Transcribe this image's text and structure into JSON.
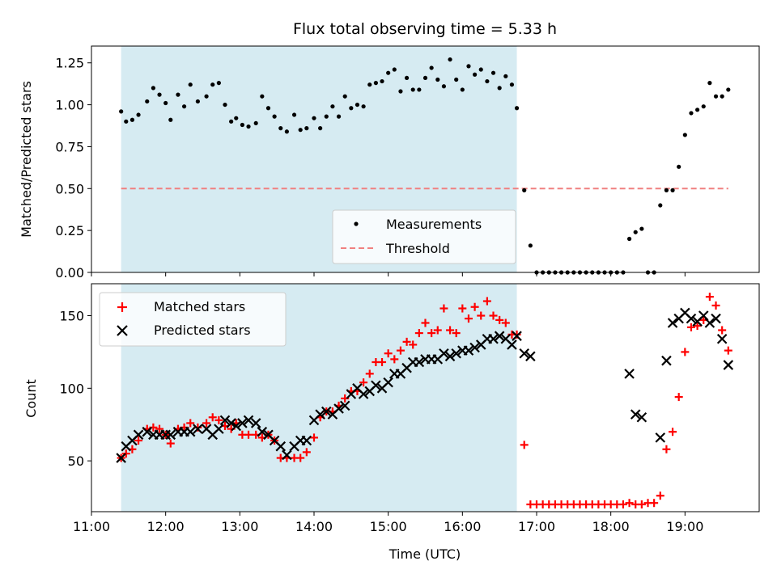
{
  "chart_data": [
    {
      "type": "scatter",
      "title": "Flux total observing time = 5.33 h",
      "xlabel": "",
      "ylabel": "Matched/Predicted stars",
      "xlim": [
        "11:00",
        "20:00"
      ],
      "ylim": [
        0,
        1.35
      ],
      "yticks": [
        0.0,
        0.25,
        0.5,
        0.75,
        1.0,
        1.25
      ],
      "ytick_labels": [
        "0.00",
        "0.25",
        "0.50",
        "0.75",
        "1.00",
        "1.25"
      ],
      "shaded_interval": [
        "11:24",
        "16:44"
      ],
      "shade_color": "#add8e6",
      "legend_position": "lower-right",
      "series": [
        {
          "name": "Measurements",
          "marker": "dot",
          "color": "#000000",
          "x": [
            "11:24",
            "11:28",
            "11:33",
            "11:38",
            "11:45",
            "11:50",
            "11:55",
            "12:00",
            "12:04",
            "12:10",
            "12:15",
            "12:20",
            "12:26",
            "12:33",
            "12:38",
            "12:43",
            "12:48",
            "12:53",
            "12:57",
            "13:02",
            "13:07",
            "13:13",
            "13:18",
            "13:23",
            "13:28",
            "13:33",
            "13:38",
            "13:44",
            "13:49",
            "13:54",
            "14:00",
            "14:05",
            "14:10",
            "14:15",
            "14:20",
            "14:25",
            "14:30",
            "14:35",
            "14:40",
            "14:45",
            "14:50",
            "14:55",
            "15:00",
            "15:05",
            "15:10",
            "15:15",
            "15:20",
            "15:25",
            "15:30",
            "15:35",
            "15:40",
            "15:45",
            "15:50",
            "15:55",
            "16:00",
            "16:05",
            "16:10",
            "16:15",
            "16:20",
            "16:25",
            "16:30",
            "16:35",
            "16:40",
            "16:44",
            "16:50",
            "16:55",
            "17:00",
            "17:05",
            "17:10",
            "17:15",
            "17:20",
            "17:25",
            "17:30",
            "17:35",
            "17:40",
            "17:45",
            "17:50",
            "17:55",
            "18:00",
            "18:05",
            "18:10",
            "18:15",
            "18:20",
            "18:25",
            "18:30",
            "18:35",
            "18:40",
            "18:45",
            "18:50",
            "18:55",
            "19:00",
            "19:05",
            "19:10",
            "19:15",
            "19:20",
            "19:25",
            "19:30",
            "19:35"
          ],
          "y": [
            0.96,
            0.9,
            0.91,
            0.94,
            1.02,
            1.1,
            1.06,
            1.01,
            0.91,
            1.06,
            0.99,
            1.12,
            1.02,
            1.05,
            1.12,
            1.13,
            1.0,
            0.9,
            0.92,
            0.88,
            0.87,
            0.89,
            1.05,
            0.98,
            0.93,
            0.86,
            0.84,
            0.94,
            0.85,
            0.86,
            0.92,
            0.86,
            0.93,
            0.99,
            0.93,
            1.05,
            0.98,
            1.0,
            0.99,
            1.12,
            1.13,
            1.14,
            1.19,
            1.21,
            1.08,
            1.16,
            1.09,
            1.09,
            1.16,
            1.22,
            1.15,
            1.11,
            1.27,
            1.15,
            1.09,
            1.23,
            1.18,
            1.21,
            1.14,
            1.19,
            1.1,
            1.17,
            1.12,
            0.98,
            0.49,
            0.16,
            0.0,
            0.0,
            0.0,
            0.0,
            0.0,
            0.0,
            0.0,
            0.0,
            0.0,
            0.0,
            0.0,
            0.0,
            0.0,
            0.0,
            0.0,
            0.2,
            0.24,
            0.26,
            0.0,
            0.0,
            0.4,
            0.49,
            0.49,
            0.63,
            0.82,
            0.95,
            0.97,
            0.99,
            1.13,
            1.05,
            1.05,
            1.09
          ]
        },
        {
          "name": "Threshold",
          "marker": "dashed-line",
          "color": "#f08080",
          "x": [
            "11:24",
            "19:35"
          ],
          "y": [
            0.5,
            0.5
          ]
        }
      ]
    },
    {
      "type": "scatter",
      "title": "",
      "xlabel": "Time (UTC)",
      "ylabel": "Count",
      "xlim": [
        "11:00",
        "20:00"
      ],
      "ylim": [
        15,
        172
      ],
      "yticks": [
        50,
        100,
        150
      ],
      "xticks": [
        "11:00",
        "12:00",
        "13:00",
        "14:00",
        "15:00",
        "16:00",
        "17:00",
        "18:00",
        "19:00"
      ],
      "shaded_interval": [
        "11:24",
        "16:44"
      ],
      "shade_color": "#add8e6",
      "legend_position": "upper-left",
      "series": [
        {
          "name": "Matched stars",
          "marker": "plus",
          "color": "#ff0000",
          "x": [
            "11:24",
            "11:28",
            "11:33",
            "11:38",
            "11:45",
            "11:50",
            "11:55",
            "12:00",
            "12:04",
            "12:10",
            "12:15",
            "12:20",
            "12:26",
            "12:33",
            "12:38",
            "12:43",
            "12:48",
            "12:53",
            "12:57",
            "13:02",
            "13:07",
            "13:13",
            "13:18",
            "13:23",
            "13:28",
            "13:33",
            "13:38",
            "13:44",
            "13:49",
            "13:54",
            "14:00",
            "14:05",
            "14:10",
            "14:15",
            "14:20",
            "14:25",
            "14:30",
            "14:35",
            "14:40",
            "14:45",
            "14:50",
            "14:55",
            "15:00",
            "15:05",
            "15:10",
            "15:15",
            "15:20",
            "15:25",
            "15:30",
            "15:35",
            "15:40",
            "15:45",
            "15:50",
            "15:55",
            "16:00",
            "16:05",
            "16:10",
            "16:15",
            "16:20",
            "16:25",
            "16:30",
            "16:35",
            "16:40",
            "16:44",
            "16:50",
            "16:55",
            "17:00",
            "17:05",
            "17:10",
            "17:15",
            "17:20",
            "17:25",
            "17:30",
            "17:35",
            "17:40",
            "17:45",
            "17:50",
            "17:55",
            "18:00",
            "18:05",
            "18:10",
            "18:15",
            "18:20",
            "18:25",
            "18:30",
            "18:35",
            "18:40",
            "18:45",
            "18:50",
            "18:55",
            "19:00",
            "19:05",
            "19:10",
            "19:15",
            "19:20",
            "19:25",
            "19:30",
            "19:35"
          ],
          "y": [
            52,
            55,
            58,
            64,
            72,
            73,
            72,
            68,
            62,
            72,
            73,
            76,
            73,
            76,
            80,
            78,
            74,
            72,
            76,
            68,
            68,
            68,
            66,
            68,
            64,
            52,
            52,
            52,
            52,
            56,
            66,
            80,
            84,
            84,
            88,
            93,
            98,
            98,
            104,
            110,
            118,
            118,
            124,
            120,
            126,
            132,
            130,
            138,
            145,
            138,
            140,
            155,
            140,
            138,
            155,
            148,
            156,
            150,
            160,
            150,
            147,
            145,
            137,
            137,
            61,
            20,
            20,
            20,
            20,
            20,
            20,
            20,
            20,
            20,
            20,
            20,
            20,
            20,
            20,
            20,
            20,
            21,
            20,
            20,
            21,
            21,
            26,
            58,
            70,
            94,
            125,
            142,
            143,
            147,
            163,
            157,
            140,
            126
          ]
        },
        {
          "name": "Predicted stars",
          "marker": "x",
          "color": "#000000",
          "x": [
            "11:24",
            "11:28",
            "11:33",
            "11:38",
            "11:45",
            "11:50",
            "11:55",
            "12:00",
            "12:04",
            "12:10",
            "12:15",
            "12:20",
            "12:26",
            "12:33",
            "12:38",
            "12:43",
            "12:48",
            "12:53",
            "12:57",
            "13:02",
            "13:07",
            "13:13",
            "13:18",
            "13:23",
            "13:28",
            "13:33",
            "13:38",
            "13:44",
            "13:49",
            "13:54",
            "14:00",
            "14:05",
            "14:10",
            "14:15",
            "14:20",
            "14:25",
            "14:30",
            "14:35",
            "14:40",
            "14:45",
            "14:50",
            "14:55",
            "15:00",
            "15:05",
            "15:10",
            "15:15",
            "15:20",
            "15:25",
            "15:30",
            "15:35",
            "15:40",
            "15:45",
            "15:50",
            "15:55",
            "16:00",
            "16:05",
            "16:10",
            "16:15",
            "16:20",
            "16:25",
            "16:30",
            "16:35",
            "16:40",
            "16:44",
            "16:50",
            "16:55",
            "18:15",
            "18:20",
            "18:25",
            "18:40",
            "18:45",
            "18:50",
            "18:55",
            "19:00",
            "19:05",
            "19:10",
            "19:15",
            "19:20",
            "19:25",
            "19:30",
            "19:35"
          ],
          "y": [
            52,
            60,
            64,
            68,
            70,
            68,
            68,
            68,
            68,
            70,
            70,
            70,
            72,
            72,
            68,
            72,
            78,
            76,
            74,
            76,
            78,
            76,
            70,
            68,
            64,
            60,
            54,
            60,
            64,
            64,
            78,
            82,
            84,
            82,
            86,
            88,
            96,
            100,
            96,
            98,
            102,
            100,
            104,
            110,
            110,
            114,
            118,
            118,
            120,
            120,
            120,
            124,
            122,
            124,
            126,
            126,
            128,
            130,
            134,
            134,
            136,
            134,
            130,
            136,
            124,
            122,
            110,
            82,
            80,
            66,
            119,
            145,
            148,
            152,
            148,
            146,
            150,
            145,
            148,
            134,
            116
          ]
        }
      ]
    }
  ]
}
